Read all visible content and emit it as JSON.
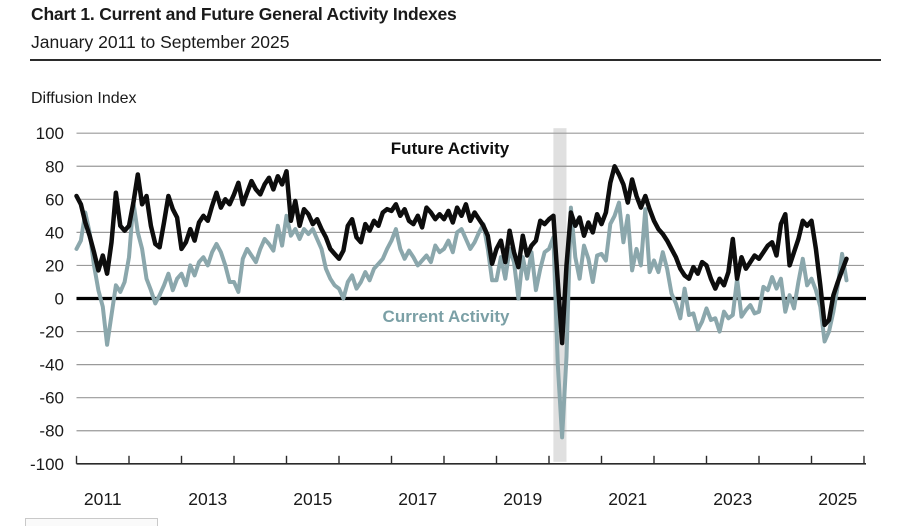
{
  "header": {
    "title": "Chart 1. Current and Future General Activity Indexes",
    "subtitle": "January 2011 to September 2025"
  },
  "axis_unit_label": "Diffusion Index",
  "series_labels": {
    "future": "Future Activity",
    "current": "Current Activity"
  },
  "colors": {
    "future_line": "#0d0d0d",
    "current_line": "#8ba7ac",
    "current_label": "#7ba0a6",
    "recession_band": "#e0e0e0",
    "gridline": "#9a9a9a",
    "zero_line": "#000000",
    "axis": "#2b2b2b"
  },
  "chart_data": {
    "type": "line",
    "title": "Chart 1. Current and Future General Activity Indexes",
    "subtitle": "January 2011 to September 2025",
    "ylabel": "Diffusion Index",
    "ylim": [
      -100,
      100
    ],
    "yticks": [
      100,
      80,
      60,
      40,
      20,
      0,
      -20,
      -40,
      -60,
      -80,
      -100
    ],
    "xticks": [
      2011,
      2013,
      2015,
      2017,
      2019,
      2021,
      2023,
      2025
    ],
    "x_start": "2011-01",
    "x_end": "2025-09",
    "frequency": "monthly",
    "grid": true,
    "legend_position": "inline-labels",
    "recession_band": {
      "start": "2020-02",
      "end": "2020-05"
    },
    "series": [
      {
        "name": "Future Activity",
        "color": "#0d0d0d",
        "values": [
          62,
          57,
          46,
          38,
          28,
          17,
          26,
          15,
          34,
          64,
          44,
          41,
          44,
          58,
          75,
          57,
          62,
          44,
          33,
          31,
          46,
          62,
          54,
          49,
          30,
          34,
          42,
          35,
          46,
          50,
          47,
          56,
          64,
          55,
          60,
          57,
          63,
          70,
          57,
          64,
          71,
          66,
          63,
          69,
          73,
          66,
          74,
          69,
          77,
          47,
          59,
          44,
          54,
          51,
          45,
          48,
          42,
          37,
          30,
          27,
          24,
          29,
          44,
          48,
          37,
          34,
          45,
          41,
          47,
          44,
          52,
          54,
          53,
          57,
          50,
          54,
          47,
          45,
          50,
          43,
          55,
          52,
          48,
          51,
          48,
          53,
          46,
          55,
          50,
          57,
          47,
          52,
          48,
          44,
          38,
          21,
          30,
          35,
          22,
          41,
          28,
          19,
          38,
          26,
          32,
          35,
          47,
          45,
          48,
          50,
          10,
          -27,
          20,
          52,
          44,
          49,
          38,
          46,
          40,
          51,
          45,
          52,
          70,
          80,
          75,
          69,
          58,
          72,
          62,
          55,
          62,
          54,
          47,
          42,
          39,
          35,
          30,
          25,
          18,
          14,
          12,
          19,
          15,
          22,
          20,
          12,
          6,
          12,
          8,
          16,
          36,
          12,
          25,
          18,
          22,
          26,
          24,
          28,
          32,
          34,
          26,
          45,
          51,
          20,
          28,
          36,
          47,
          44,
          47,
          30,
          8,
          -16,
          -13,
          2,
          10,
          17,
          24
        ]
      },
      {
        "name": "Current Activity",
        "color": "#8ba7ac",
        "values": [
          30,
          35,
          52,
          40,
          20,
          5,
          -5,
          -28,
          -10,
          8,
          4,
          10,
          25,
          58,
          40,
          30,
          12,
          5,
          -3,
          2,
          8,
          15,
          5,
          12,
          15,
          8,
          20,
          14,
          22,
          25,
          20,
          28,
          33,
          28,
          20,
          10,
          10,
          4,
          24,
          30,
          26,
          22,
          30,
          36,
          33,
          29,
          44,
          32,
          50,
          38,
          42,
          36,
          42,
          39,
          42,
          36,
          30,
          18,
          12,
          8,
          6,
          0,
          10,
          14,
          6,
          10,
          16,
          11,
          18,
          21,
          24,
          30,
          35,
          42,
          30,
          24,
          29,
          25,
          20,
          23,
          26,
          22,
          32,
          28,
          30,
          35,
          28,
          40,
          42,
          36,
          30,
          34,
          40,
          45,
          30,
          11,
          11,
          25,
          12,
          30,
          22,
          0,
          25,
          12,
          28,
          5,
          18,
          28,
          30,
          37,
          -40,
          -84,
          -35,
          55,
          25,
          12,
          32,
          24,
          10,
          26,
          27,
          23,
          45,
          50,
          58,
          34,
          50,
          17,
          30,
          20,
          54,
          16,
          23,
          16,
          28,
          18,
          3,
          -3,
          -12,
          6,
          -10,
          -9,
          -19,
          -14,
          -6,
          -13,
          -12,
          -20,
          -8,
          -12,
          -10,
          12,
          -11,
          -7,
          -4,
          -9,
          -8,
          7,
          5,
          13,
          6,
          12,
          -8,
          2,
          -6,
          10,
          24,
          8,
          12,
          5,
          -5,
          -26,
          -20,
          -8,
          8,
          27,
          11
        ]
      }
    ]
  }
}
